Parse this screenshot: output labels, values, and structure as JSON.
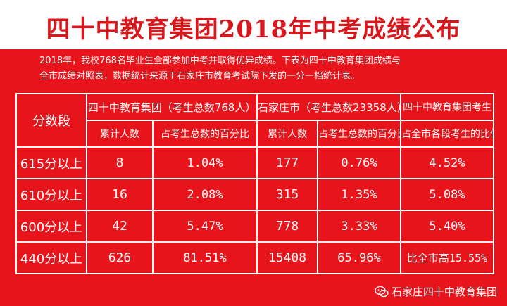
{
  "title": "四十中教育集团2018年中考成绩公布",
  "intro": {
    "line1": "2018年，我校768名毕业生全部参加中考并取得优异成绩。下表为四十中教育集团成绩与",
    "line2": "全市成绩对照表，数据统计来源于石家庄市教育考试院下发的一分一档统计表。"
  },
  "table": {
    "seg_header": "分数段",
    "group_header": "四十中教育集团（考生总数768人）",
    "city_header": "石家庄市（考生总数23358人）",
    "ratio_header_line1": "四十中教育集团考生",
    "ratio_header_line2": "占全市各段考生的比例",
    "sub_cum": "累计人数",
    "sub_pct": "占考生总数的百分比",
    "city_sub_cum": "累计人数",
    "city_sub_pct": "占考生总数的百分比",
    "rows": [
      {
        "seg": "615分以上",
        "g_cum": "8",
        "g_pct": "1.04%",
        "c_cum": "177",
        "c_pct": "0.76%",
        "ratio": "4.52%"
      },
      {
        "seg": "610分以上",
        "g_cum": "16",
        "g_pct": "2.08%",
        "c_cum": "315",
        "c_pct": "1.35%",
        "ratio": "5.08%"
      },
      {
        "seg": "600分以上",
        "g_cum": "42",
        "g_pct": "5.47%",
        "c_cum": "778",
        "c_pct": "3.33%",
        "ratio": "5.40%"
      },
      {
        "seg": "440分以上",
        "g_cum": "626",
        "g_pct": "81.51%",
        "c_cum": "15408",
        "c_pct": "65.96%",
        "ratio": "比全市高15.55%"
      }
    ]
  },
  "watermark": {
    "icon": "wechat-icon",
    "text": "石家庄四十中教育集团"
  }
}
